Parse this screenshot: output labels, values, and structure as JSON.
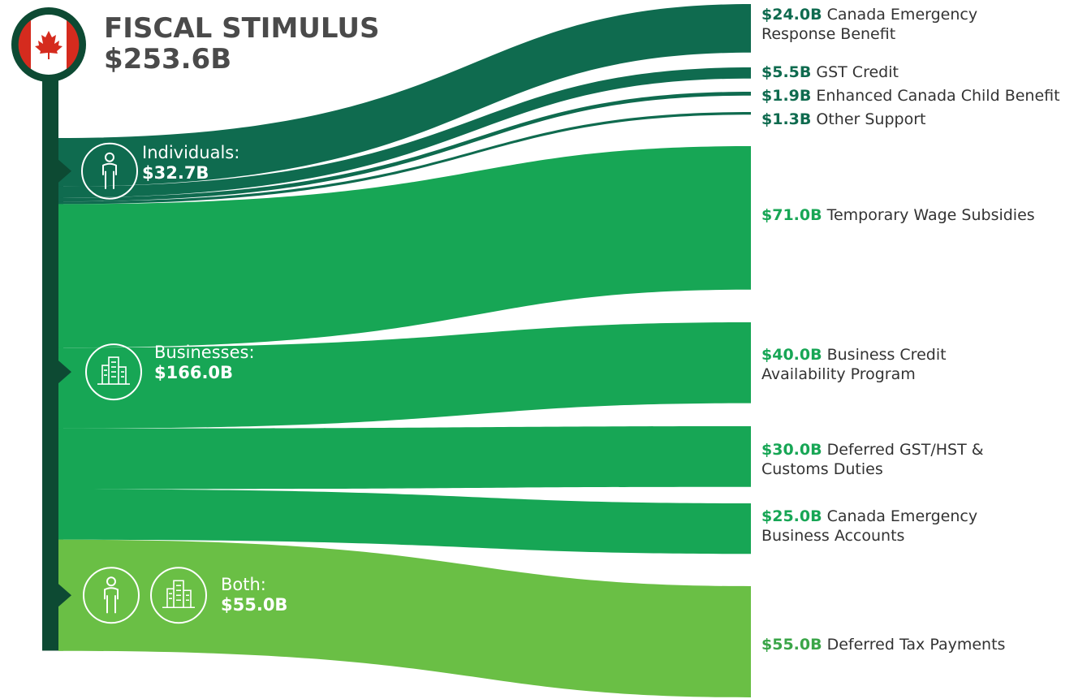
{
  "chart_data": {
    "type": "sankey",
    "title": "FISCAL STIMULUS",
    "total": 253.6,
    "total_label": "$253.6B",
    "groups": [
      {
        "name": "Individuals:",
        "value": 32.7,
        "value_label": "$32.7B",
        "color": "#0f6b4f",
        "items": [
          {
            "name": "Canada Emergency Response Benefit",
            "value": 24.0,
            "value_label": "$24.0B"
          },
          {
            "name": "GST Credit",
            "value": 5.5,
            "value_label": "$5.5B"
          },
          {
            "name": "Enhanced Canada Child Benefit",
            "value": 1.9,
            "value_label": "$1.9B"
          },
          {
            "name": "Other Support",
            "value": 1.3,
            "value_label": "$1.3B"
          }
        ]
      },
      {
        "name": "Businesses:",
        "value": 166.0,
        "value_label": "$166.0B",
        "color": "#17a655",
        "items": [
          {
            "name": "Temporary Wage Subsidies",
            "value": 71.0,
            "value_label": "$71.0B"
          },
          {
            "name": "Business Credit Availability Program",
            "value": 40.0,
            "value_label": "$40.0B"
          },
          {
            "name": "Deferred GST/HST & Customs Duties",
            "value": 30.0,
            "value_label": "$30.0B"
          },
          {
            "name": "Canada Emergency Business Accounts",
            "value": 25.0,
            "value_label": "$25.0B"
          }
        ]
      },
      {
        "name": "Both:",
        "value": 55.0,
        "value_label": "$55.0B",
        "color": "#6abf45",
        "items": [
          {
            "name": "Deferred Tax Payments",
            "value": 55.0,
            "value_label": "$55.0B"
          }
        ]
      }
    ]
  }
}
